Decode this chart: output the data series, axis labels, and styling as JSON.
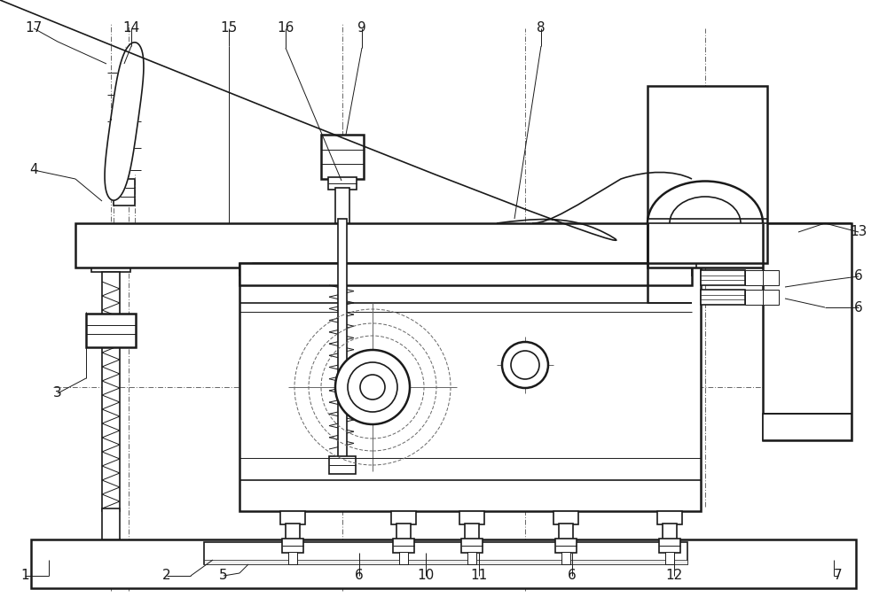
{
  "bg": "#ffffff",
  "lc": "#1a1a1a",
  "dc": "#666666",
  "lw_thick": 1.8,
  "lw_med": 1.2,
  "lw_thin": 0.7,
  "lw_hair": 0.5,
  "label_fs": 11
}
